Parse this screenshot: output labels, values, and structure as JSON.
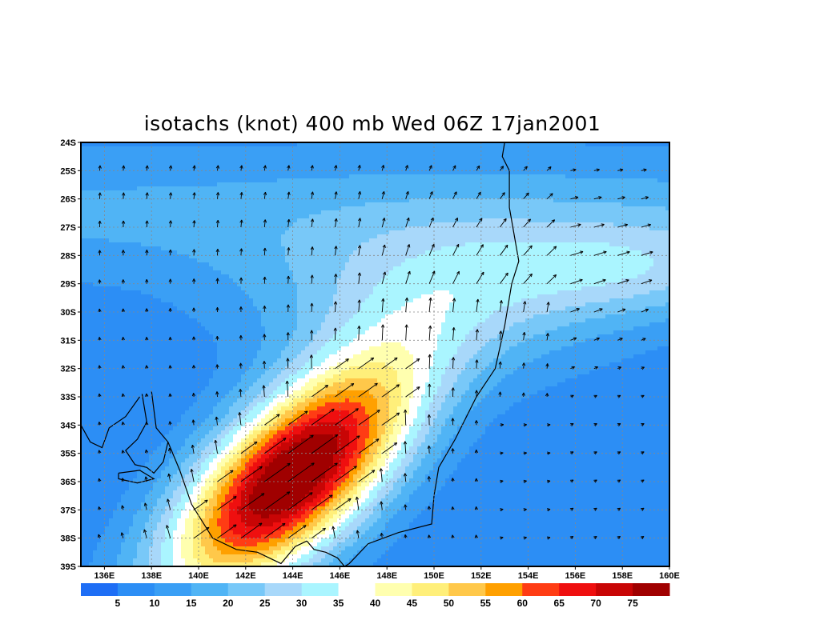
{
  "title": "isotachs (knot) 400 mb Wed 06Z 17jan2001",
  "chart_data": {
    "type": "heatmap",
    "title": "isotachs (knot) 400 mb Wed 06Z 17jan2001",
    "variable": "isotachs",
    "units": "knot",
    "level": "400 mb",
    "x_ticks": [
      "136E",
      "138E",
      "140E",
      "142E",
      "144E",
      "146E",
      "148E",
      "150E",
      "152E",
      "154E",
      "156E",
      "158E",
      "160E"
    ],
    "x_tick_values": [
      136,
      138,
      140,
      142,
      144,
      146,
      148,
      150,
      152,
      154,
      156,
      158,
      160
    ],
    "y_ticks": [
      "24S",
      "25S",
      "26S",
      "27S",
      "28S",
      "29S",
      "30S",
      "31S",
      "32S",
      "33S",
      "34S",
      "35S",
      "36S",
      "37S",
      "38S",
      "39S"
    ],
    "y_tick_values": [
      -24,
      -25,
      -26,
      -27,
      -28,
      -29,
      -30,
      -31,
      -32,
      -33,
      -34,
      -35,
      -36,
      -37,
      -38,
      -39
    ],
    "xlim": [
      135,
      160
    ],
    "ylim": [
      -39,
      -24
    ],
    "grid": true,
    "colorbar": {
      "labels": [
        "5",
        "10",
        "15",
        "20",
        "25",
        "30",
        "35",
        "40",
        "45",
        "50",
        "55",
        "60",
        "65",
        "70",
        "75"
      ],
      "levels": [
        5,
        10,
        15,
        20,
        25,
        30,
        35,
        40,
        45,
        50,
        55,
        60,
        65,
        70,
        75
      ],
      "colors": [
        "#1e6ef5",
        "#2c8ef5",
        "#3a9ff5",
        "#50b4f5",
        "#78c8f8",
        "#a8d8fa",
        "#aaf5ff",
        "#ffffff",
        "#ffffaf",
        "#ffef7a",
        "#ffc84a",
        "#ffa000",
        "#ff3c14",
        "#ef0f0f",
        "#c80505",
        "#a00000"
      ]
    },
    "jet_max": {
      "lon": 144.0,
      "lat": -35.8,
      "speed": 78
    }
  }
}
